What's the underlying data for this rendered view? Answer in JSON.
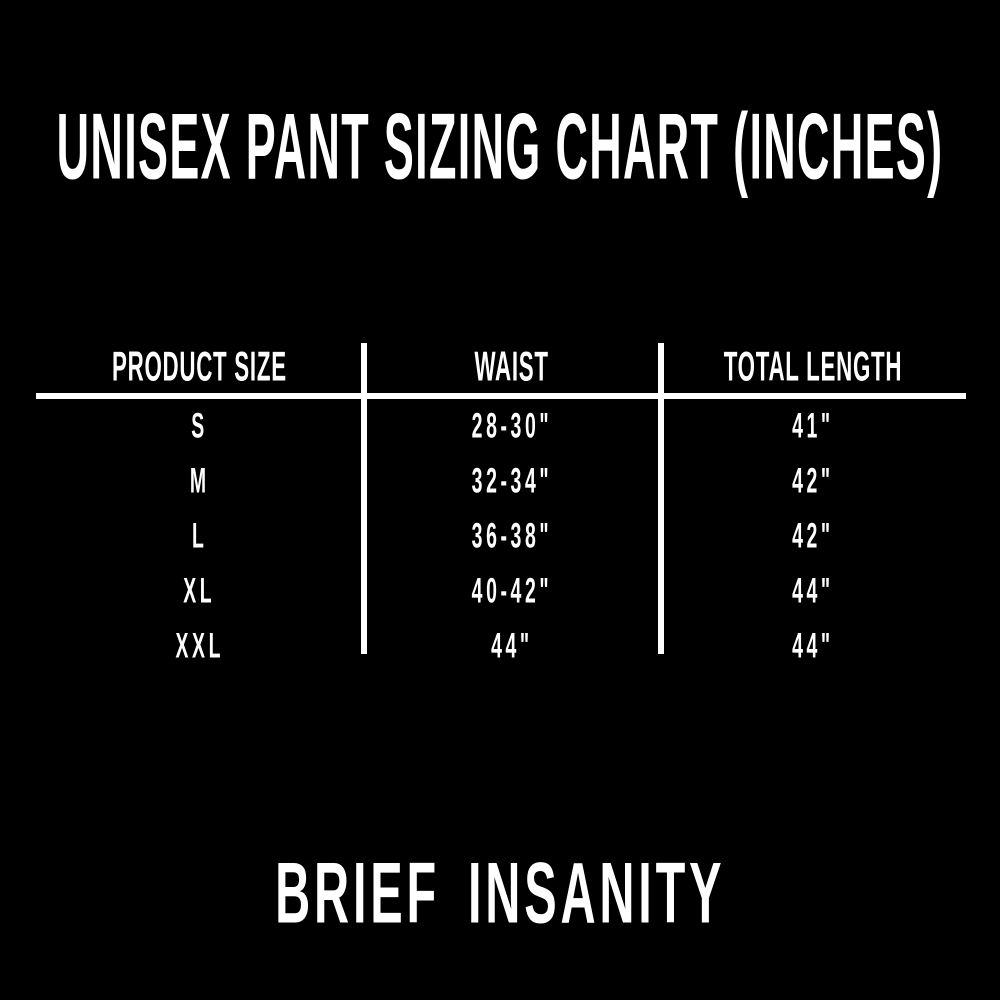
{
  "title": "UNISEX PANT SIZING CHART (INCHES)",
  "brand": "BRIEF INSANITY",
  "colors": {
    "background": "#000000",
    "text": "#ffffff",
    "rule_lines": "#ffffff"
  },
  "table": {
    "headers": {
      "size": "PRODUCT SIZE",
      "waist": "WAIST",
      "length": "TOTAL LENGTH"
    },
    "rows": [
      {
        "size": "S",
        "waist": "28-30\"",
        "length": "41\""
      },
      {
        "size": "M",
        "waist": "32-34\"",
        "length": "42\""
      },
      {
        "size": "L",
        "waist": "36-38\"",
        "length": "42\""
      },
      {
        "size": "XL",
        "waist": "40-42\"",
        "length": "44\""
      },
      {
        "size": "XXL",
        "waist": "44\"",
        "length": "44\""
      }
    ]
  },
  "chart_data": {
    "type": "table",
    "title": "UNISEX PANT SIZING CHART (INCHES)",
    "columns": [
      "PRODUCT SIZE",
      "WAIST",
      "TOTAL LENGTH"
    ],
    "rows": [
      [
        "S",
        "28-30\"",
        "41\""
      ],
      [
        "M",
        "32-34\"",
        "42\""
      ],
      [
        "L",
        "36-38\"",
        "42\""
      ],
      [
        "XL",
        "40-42\"",
        "44\""
      ],
      [
        "XXL",
        "44\"",
        "44\""
      ]
    ],
    "layout": {
      "background": "#000000",
      "text_color": "#ffffff",
      "column_dividers": true,
      "header_underline": true
    }
  }
}
